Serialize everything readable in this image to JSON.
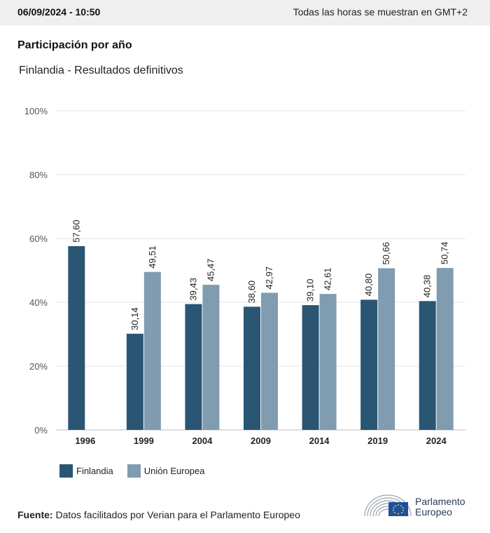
{
  "header": {
    "datetime": "06/09/2024 - 10:50",
    "timezone_note": "Todas las horas se muestran en GMT+2"
  },
  "title": "Participación por año",
  "subtitle": "Finlandia - Resultados definitivos",
  "chart_data": {
    "type": "bar",
    "categories": [
      "1996",
      "1999",
      "2004",
      "2009",
      "2014",
      "2019",
      "2024"
    ],
    "series": [
      {
        "name": "Finlandia",
        "color": "#2a5674",
        "values": [
          57.6,
          30.14,
          39.43,
          38.6,
          39.1,
          40.8,
          40.38
        ],
        "labels": [
          "57,60",
          "30,14",
          "39,43",
          "38,60",
          "39,10",
          "40,80",
          "40,38"
        ]
      },
      {
        "name": "Unión Europea",
        "color": "#7f9cb0",
        "values": [
          null,
          49.51,
          45.47,
          42.97,
          42.61,
          50.66,
          50.74
        ],
        "labels": [
          "",
          "49,51",
          "45,47",
          "42,97",
          "42,61",
          "50,66",
          "50,74"
        ]
      }
    ],
    "ylim": [
      0,
      100
    ],
    "yticks": [
      0,
      20,
      40,
      60,
      80,
      100
    ],
    "ytick_labels": [
      "0%",
      "20%",
      "40%",
      "60%",
      "80%",
      "100%"
    ],
    "grid": true,
    "legend": "bottom-left"
  },
  "source": {
    "label": "Fuente:",
    "text": "Datos facilitados por Verian para el Parlamento Europeo"
  },
  "logo": {
    "line1": "Parlamento",
    "line2": "Europeo"
  }
}
